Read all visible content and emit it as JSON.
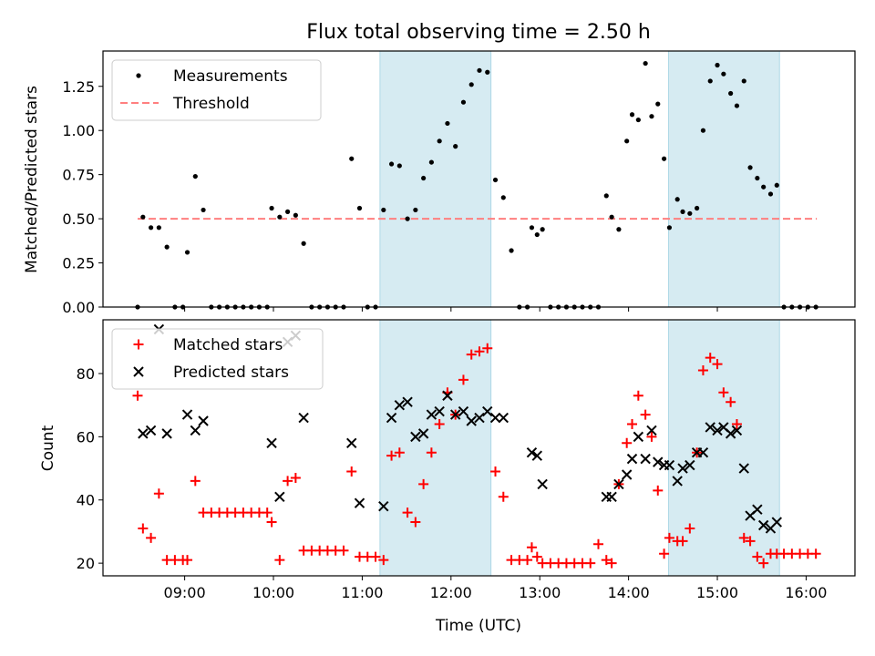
{
  "title": "Flux total observing time = 2.50 h",
  "colors": {
    "measurement": "#000000",
    "threshold": "#ff7f7f",
    "matched": "#ff0000",
    "predicted": "#000000",
    "shade": "#add8e6"
  },
  "chart_data": [
    {
      "type": "scatter",
      "name": "top",
      "ylabel": "Matched/Predicted stars",
      "xlim": [
        8.08,
        16.55
      ],
      "ylim": [
        0,
        1.45
      ],
      "yticks": [
        0.0,
        0.25,
        0.5,
        0.75,
        1.0,
        1.25
      ],
      "ytick_labels": [
        "0.00",
        "0.25",
        "0.50",
        "0.75",
        "1.00",
        "1.25"
      ],
      "xticks": [
        9,
        10,
        11,
        12,
        13,
        14,
        15,
        16
      ],
      "shaded_intervals": [
        [
          11.2,
          12.45
        ],
        [
          14.45,
          15.7
        ]
      ],
      "legend": {
        "position": "top-left",
        "entries": [
          "Measurements",
          "Threshold"
        ]
      },
      "threshold": {
        "label": "Threshold",
        "y": 0.5,
        "x_range": [
          8.47,
          16.12
        ]
      },
      "measurements": [
        [
          8.47,
          0.0
        ],
        [
          8.53,
          0.51
        ],
        [
          8.62,
          0.45
        ],
        [
          8.71,
          0.45
        ],
        [
          8.8,
          0.34
        ],
        [
          8.89,
          0.0
        ],
        [
          8.98,
          0.0
        ],
        [
          9.03,
          0.31
        ],
        [
          9.12,
          0.74
        ],
        [
          9.21,
          0.55
        ],
        [
          9.3,
          0.0
        ],
        [
          9.39,
          0.0
        ],
        [
          9.48,
          0.0
        ],
        [
          9.57,
          0.0
        ],
        [
          9.66,
          0.0
        ],
        [
          9.75,
          0.0
        ],
        [
          9.84,
          0.0
        ],
        [
          9.93,
          0.0
        ],
        [
          9.98,
          0.56
        ],
        [
          10.07,
          0.51
        ],
        [
          10.16,
          0.54
        ],
        [
          10.25,
          0.52
        ],
        [
          10.34,
          0.36
        ],
        [
          10.43,
          0.0
        ],
        [
          10.52,
          0.0
        ],
        [
          10.61,
          0.0
        ],
        [
          10.7,
          0.0
        ],
        [
          10.79,
          0.0
        ],
        [
          10.88,
          0.84
        ],
        [
          10.97,
          0.56
        ],
        [
          11.06,
          0.0
        ],
        [
          11.15,
          0.0
        ],
        [
          11.24,
          0.55
        ],
        [
          11.33,
          0.81
        ],
        [
          11.42,
          0.8
        ],
        [
          11.51,
          0.5
        ],
        [
          11.6,
          0.55
        ],
        [
          11.69,
          0.73
        ],
        [
          11.78,
          0.82
        ],
        [
          11.87,
          0.94
        ],
        [
          11.96,
          1.04
        ],
        [
          12.05,
          0.91
        ],
        [
          12.14,
          1.16
        ],
        [
          12.23,
          1.26
        ],
        [
          12.32,
          1.34
        ],
        [
          12.41,
          1.33
        ],
        [
          12.5,
          0.72
        ],
        [
          12.59,
          0.62
        ],
        [
          12.68,
          0.32
        ],
        [
          12.77,
          0.0
        ],
        [
          12.86,
          0.0
        ],
        [
          12.91,
          0.45
        ],
        [
          12.97,
          0.41
        ],
        [
          13.03,
          0.44
        ],
        [
          13.12,
          0.0
        ],
        [
          13.21,
          0.0
        ],
        [
          13.3,
          0.0
        ],
        [
          13.39,
          0.0
        ],
        [
          13.48,
          0.0
        ],
        [
          13.57,
          0.0
        ],
        [
          13.66,
          0.0
        ],
        [
          13.75,
          0.63
        ],
        [
          13.81,
          0.51
        ],
        [
          13.89,
          0.44
        ],
        [
          13.98,
          0.94
        ],
        [
          14.04,
          1.09
        ],
        [
          14.11,
          1.06
        ],
        [
          14.19,
          1.38
        ],
        [
          14.26,
          1.08
        ],
        [
          14.33,
          1.15
        ],
        [
          14.4,
          0.84
        ],
        [
          14.46,
          0.45
        ],
        [
          14.55,
          0.61
        ],
        [
          14.61,
          0.54
        ],
        [
          14.69,
          0.53
        ],
        [
          14.77,
          0.56
        ],
        [
          14.84,
          1.0
        ],
        [
          14.92,
          1.28
        ],
        [
          15.0,
          1.37
        ],
        [
          15.07,
          1.32
        ],
        [
          15.15,
          1.21
        ],
        [
          15.22,
          1.14
        ],
        [
          15.3,
          1.28
        ],
        [
          15.37,
          0.79
        ],
        [
          15.45,
          0.73
        ],
        [
          15.52,
          0.68
        ],
        [
          15.6,
          0.64
        ],
        [
          15.67,
          0.69
        ],
        [
          15.75,
          0.0
        ],
        [
          15.84,
          0.0
        ],
        [
          15.93,
          0.0
        ],
        [
          16.02,
          0.0
        ],
        [
          16.11,
          0.0
        ]
      ]
    },
    {
      "type": "scatter",
      "name": "bottom",
      "xlabel": "Time (UTC)",
      "ylabel": "Count",
      "xlim": [
        8.08,
        16.55
      ],
      "ylim": [
        16,
        97
      ],
      "yticks": [
        20,
        40,
        60,
        80
      ],
      "xticks": [
        9,
        10,
        11,
        12,
        13,
        14,
        15,
        16
      ],
      "xtick_labels": [
        "09:00",
        "10:00",
        "11:00",
        "12:00",
        "13:00",
        "14:00",
        "15:00",
        "16:00"
      ],
      "shaded_intervals": [
        [
          11.2,
          12.45
        ],
        [
          14.45,
          15.7
        ]
      ],
      "legend": {
        "position": "top-left",
        "entries": [
          "Matched stars",
          "Predicted stars"
        ]
      },
      "series": [
        {
          "name": "Matched stars",
          "marker": "plus",
          "points": [
            [
              8.47,
              73
            ],
            [
              8.53,
              31
            ],
            [
              8.62,
              28
            ],
            [
              8.71,
              42
            ],
            [
              8.8,
              21
            ],
            [
              8.89,
              21
            ],
            [
              8.98,
              21
            ],
            [
              9.03,
              21
            ],
            [
              9.12,
              46
            ],
            [
              9.21,
              36
            ],
            [
              9.3,
              36
            ],
            [
              9.39,
              36
            ],
            [
              9.48,
              36
            ],
            [
              9.57,
              36
            ],
            [
              9.66,
              36
            ],
            [
              9.75,
              36
            ],
            [
              9.84,
              36
            ],
            [
              9.93,
              36
            ],
            [
              9.98,
              33
            ],
            [
              10.07,
              21
            ],
            [
              10.16,
              46
            ],
            [
              10.25,
              47
            ],
            [
              10.34,
              24
            ],
            [
              10.43,
              24
            ],
            [
              10.52,
              24
            ],
            [
              10.61,
              24
            ],
            [
              10.7,
              24
            ],
            [
              10.79,
              24
            ],
            [
              10.88,
              49
            ],
            [
              10.97,
              22
            ],
            [
              11.06,
              22
            ],
            [
              11.15,
              22
            ],
            [
              11.24,
              21
            ],
            [
              11.33,
              54
            ],
            [
              11.42,
              55
            ],
            [
              11.51,
              36
            ],
            [
              11.6,
              33
            ],
            [
              11.69,
              45
            ],
            [
              11.78,
              55
            ],
            [
              11.87,
              64
            ],
            [
              11.96,
              74
            ],
            [
              12.05,
              67
            ],
            [
              12.14,
              78
            ],
            [
              12.23,
              86
            ],
            [
              12.32,
              87
            ],
            [
              12.41,
              88
            ],
            [
              12.5,
              49
            ],
            [
              12.59,
              41
            ],
            [
              12.68,
              21
            ],
            [
              12.77,
              21
            ],
            [
              12.86,
              21
            ],
            [
              12.91,
              25
            ],
            [
              12.97,
              22
            ],
            [
              13.03,
              20
            ],
            [
              13.12,
              20
            ],
            [
              13.21,
              20
            ],
            [
              13.3,
              20
            ],
            [
              13.39,
              20
            ],
            [
              13.48,
              20
            ],
            [
              13.57,
              20
            ],
            [
              13.66,
              26
            ],
            [
              13.75,
              21
            ],
            [
              13.81,
              20
            ],
            [
              13.89,
              45
            ],
            [
              13.98,
              58
            ],
            [
              14.04,
              64
            ],
            [
              14.11,
              73
            ],
            [
              14.19,
              67
            ],
            [
              14.26,
              60
            ],
            [
              14.33,
              43
            ],
            [
              14.4,
              23
            ],
            [
              14.46,
              28
            ],
            [
              14.55,
              27
            ],
            [
              14.61,
              27
            ],
            [
              14.69,
              31
            ],
            [
              14.77,
              55
            ],
            [
              14.84,
              81
            ],
            [
              14.92,
              85
            ],
            [
              15.0,
              83
            ],
            [
              15.07,
              74
            ],
            [
              15.15,
              71
            ],
            [
              15.22,
              64
            ],
            [
              15.3,
              28
            ],
            [
              15.37,
              27
            ],
            [
              15.45,
              22
            ],
            [
              15.52,
              20
            ],
            [
              15.6,
              23
            ],
            [
              15.67,
              23
            ],
            [
              15.75,
              23
            ],
            [
              15.84,
              23
            ],
            [
              15.93,
              23
            ],
            [
              16.02,
              23
            ],
            [
              16.11,
              23
            ]
          ]
        },
        {
          "name": "Predicted stars",
          "marker": "x",
          "points": [
            [
              8.53,
              61
            ],
            [
              8.62,
              62
            ],
            [
              8.71,
              94
            ],
            [
              8.8,
              61
            ],
            [
              9.03,
              67
            ],
            [
              9.12,
              62
            ],
            [
              9.21,
              65
            ],
            [
              9.98,
              58
            ],
            [
              10.07,
              41
            ],
            [
              10.16,
              90
            ],
            [
              10.25,
              92
            ],
            [
              10.34,
              66
            ],
            [
              10.88,
              58
            ],
            [
              10.97,
              39
            ],
            [
              11.24,
              38
            ],
            [
              11.33,
              66
            ],
            [
              11.42,
              70
            ],
            [
              11.51,
              71
            ],
            [
              11.6,
              60
            ],
            [
              11.69,
              61
            ],
            [
              11.78,
              67
            ],
            [
              11.87,
              68
            ],
            [
              11.96,
              73
            ],
            [
              12.05,
              67
            ],
            [
              12.14,
              68
            ],
            [
              12.23,
              65
            ],
            [
              12.32,
              66
            ],
            [
              12.41,
              68
            ],
            [
              12.5,
              66
            ],
            [
              12.59,
              66
            ],
            [
              12.91,
              55
            ],
            [
              12.97,
              54
            ],
            [
              13.03,
              45
            ],
            [
              13.75,
              41
            ],
            [
              13.81,
              41
            ],
            [
              13.89,
              45
            ],
            [
              13.98,
              48
            ],
            [
              14.04,
              53
            ],
            [
              14.11,
              60
            ],
            [
              14.19,
              53
            ],
            [
              14.26,
              62
            ],
            [
              14.33,
              52
            ],
            [
              14.4,
              51
            ],
            [
              14.46,
              51
            ],
            [
              14.55,
              46
            ],
            [
              14.61,
              50
            ],
            [
              14.69,
              51
            ],
            [
              14.77,
              55
            ],
            [
              14.84,
              55
            ],
            [
              14.92,
              63
            ],
            [
              15.0,
              62
            ],
            [
              15.07,
              63
            ],
            [
              15.15,
              61
            ],
            [
              15.22,
              62
            ],
            [
              15.3,
              50
            ],
            [
              15.37,
              35
            ],
            [
              15.45,
              37
            ],
            [
              15.52,
              32
            ],
            [
              15.6,
              31
            ],
            [
              15.67,
              33
            ]
          ]
        }
      ]
    }
  ]
}
